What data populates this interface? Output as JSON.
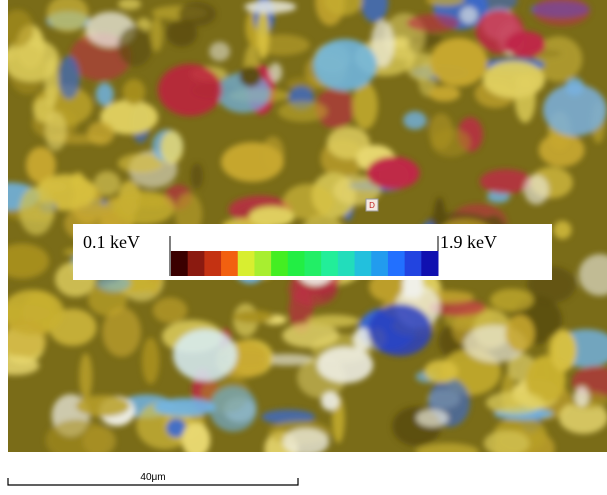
{
  "image": {
    "marker": "D"
  },
  "colorbar": {
    "min_label": "0.1 keV",
    "max_label": "1.9 keV"
  },
  "scalebar": {
    "label": "40μm"
  }
}
